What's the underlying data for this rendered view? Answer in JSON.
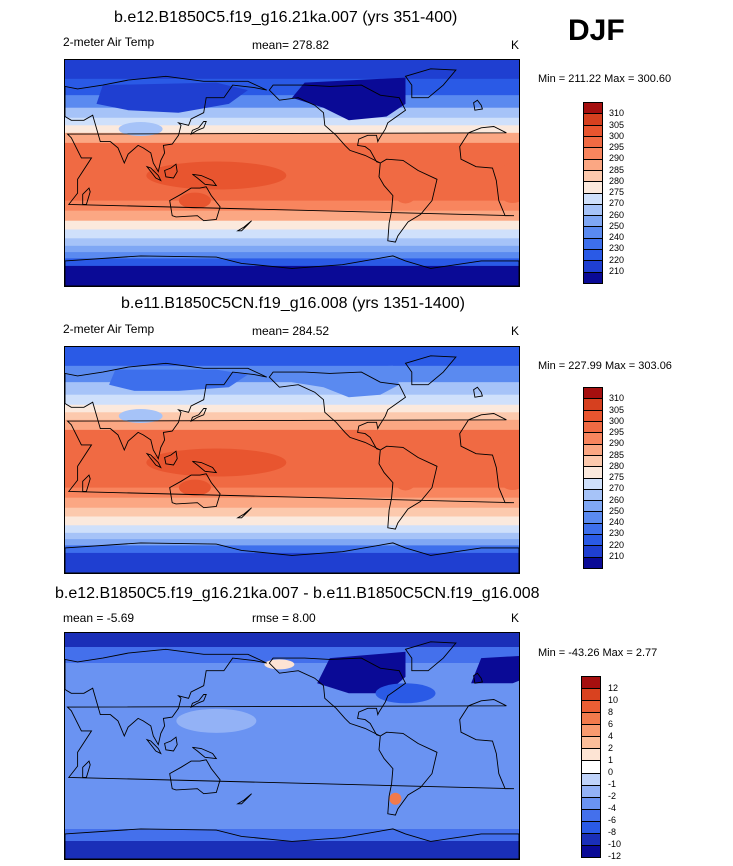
{
  "season": "DJF",
  "colors": {
    "abs": [
      "#0a0a96",
      "#1f3fd1",
      "#2a5ae6",
      "#3d6fec",
      "#5a8af0",
      "#7fa7f4",
      "#a6c3f8",
      "#cfe0fb",
      "#fbe9dd",
      "#fcc9ad",
      "#fba783",
      "#f8855e",
      "#f06a43",
      "#e8552f",
      "#d6401f",
      "#a50f0f"
    ],
    "diff": [
      "#0a0a96",
      "#1a2fb8",
      "#2a5ae6",
      "#4470ec",
      "#6a93f2",
      "#93b2f6",
      "#bfd3fa",
      "#ffffff",
      "#fde4d4",
      "#fcbe9a",
      "#f89a6f",
      "#f27a4c",
      "#ea5e34",
      "#d9421f",
      "#a50f0f"
    ]
  },
  "panels": [
    {
      "title": "b.e12.B1850C5.f19_g16.21ka.007 (yrs 351-400)",
      "left_label": "2-meter Air Temp",
      "mean_text": "mean= 278.82",
      "units": "K",
      "minmax": "Min = 211.22 Max = 300.60",
      "colorbar_labels": [
        "310",
        "305",
        "300",
        "295",
        "290",
        "285",
        "280",
        "275",
        "270",
        "260",
        "250",
        "240",
        "230",
        "220",
        "210"
      ],
      "field": "glacial"
    },
    {
      "title": "b.e11.B1850C5CN.f19_g16.008 (yrs 1351-1400)",
      "left_label": "2-meter Air Temp",
      "mean_text": "mean= 284.52",
      "units": "K",
      "minmax": "Min = 227.99 Max = 303.06",
      "colorbar_labels": [
        "310",
        "305",
        "300",
        "295",
        "290",
        "285",
        "280",
        "275",
        "270",
        "260",
        "250",
        "240",
        "230",
        "220",
        "210"
      ],
      "field": "preindustrial"
    },
    {
      "title": "b.e12.B1850C5.f19_g16.21ka.007 - b.e11.B1850C5CN.f19_g16.008",
      "left_label": "mean =  -5.69",
      "mean_text": "rmse =   8.00",
      "units": "K",
      "minmax": "Min = -43.26 Max =   2.77",
      "colorbar_labels": [
        "12",
        "10",
        "8",
        "6",
        "4",
        "2",
        "1",
        "0",
        "-1",
        "-2",
        "-4",
        "-6",
        "-8",
        "-10",
        "-12"
      ],
      "field": "difference"
    }
  ]
}
